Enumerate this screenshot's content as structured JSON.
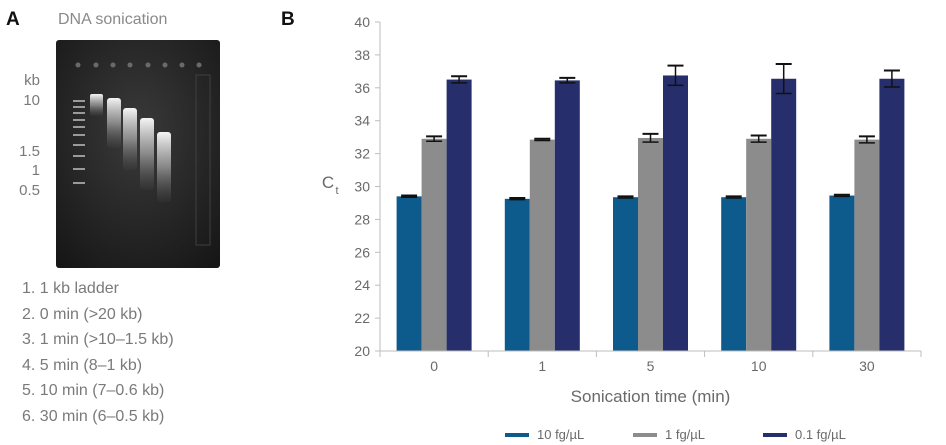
{
  "panel_a": {
    "letter": "A",
    "title": "DNA sonication",
    "size_unit": "kb",
    "size_markers": [
      "10",
      "1.5",
      "1",
      "0.5"
    ],
    "lane_legend": [
      "1. 1 kb ladder",
      "2. 0 min (>20 kb)",
      "3. 1 min (>10–1.5 kb)",
      "4. 5 min (8–1 kb)",
      "5. 10 min (7–0.6 kb)",
      "6. 30 min (6–0.5 kb)"
    ]
  },
  "panel_b": {
    "letter": "B"
  },
  "colors": {
    "series1": "#0d5a8c",
    "series2": "#8c8c8c",
    "series3": "#262f6b",
    "axis": "#bdbdbd",
    "text": "#6a6a6a"
  },
  "chart_data": {
    "type": "bar",
    "xlabel": "Sonication time (min)",
    "ylabel_main": "C",
    "ylabel_sub": "t",
    "ylim": [
      20,
      40
    ],
    "yticks": [
      20,
      22,
      24,
      26,
      28,
      30,
      32,
      34,
      36,
      38,
      40
    ],
    "categories": [
      "0",
      "1",
      "5",
      "10",
      "30"
    ],
    "grid": false,
    "legend_position": "bottom",
    "series": [
      {
        "name": "10 fg/µL",
        "values": [
          29.4,
          29.25,
          29.35,
          29.35,
          29.45
        ],
        "errors": [
          0.05,
          0.05,
          0.05,
          0.05,
          0.05
        ]
      },
      {
        "name": "1 fg/µL",
        "values": [
          32.9,
          32.85,
          32.95,
          32.9,
          32.85
        ],
        "errors": [
          0.15,
          0.05,
          0.25,
          0.2,
          0.2
        ]
      },
      {
        "name": "0.1 fg/µL",
        "values": [
          36.5,
          36.45,
          36.75,
          36.55,
          36.55
        ],
        "errors": [
          0.2,
          0.15,
          0.6,
          0.9,
          0.5
        ]
      }
    ]
  }
}
